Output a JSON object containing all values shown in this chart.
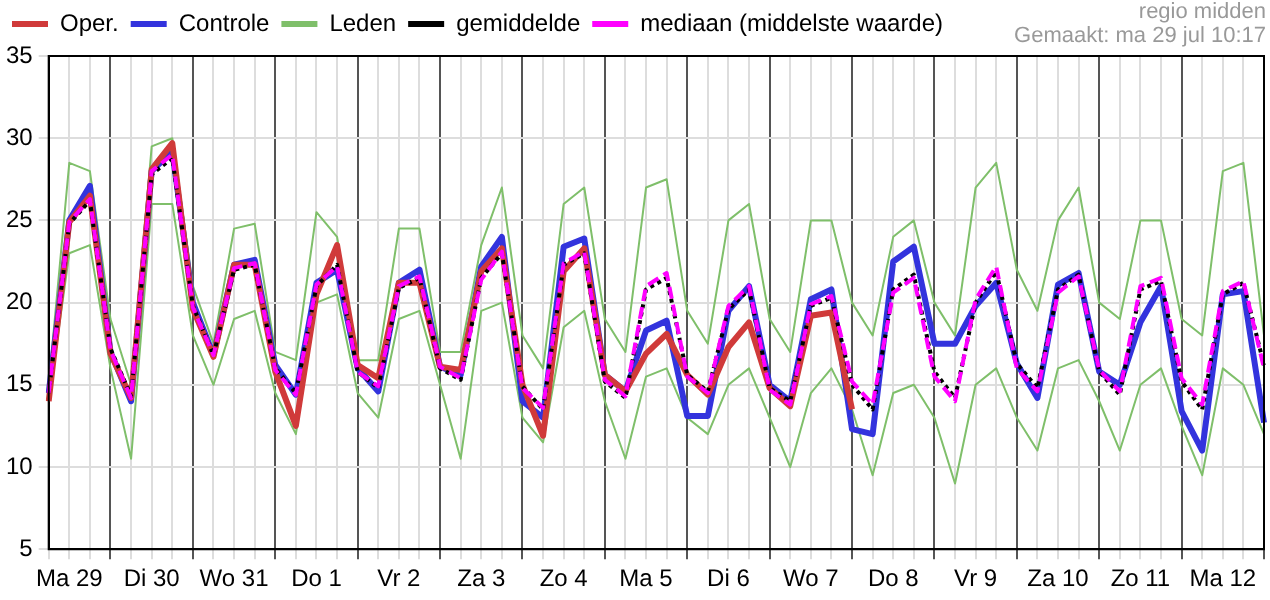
{
  "chart_data": {
    "type": "line",
    "categories": [
      null,
      "Ma 29",
      null,
      null,
      null,
      "Di 30",
      null,
      null,
      null,
      "Wo 31",
      null,
      null,
      null,
      "Do 1",
      null,
      null,
      null,
      "Vr 2",
      null,
      null,
      null,
      "Za 3",
      null,
      null,
      null,
      "Zo 4",
      null,
      null,
      null,
      "Ma 5",
      null,
      null,
      null,
      "Di 6",
      null,
      null,
      null,
      "Wo 7",
      null,
      null,
      null,
      "Do 8",
      null,
      null,
      null,
      "Vr 9",
      null,
      null,
      null,
      "Za 10",
      null,
      null,
      null,
      "Zo 11",
      null,
      null,
      null,
      "Ma 12",
      null,
      null
    ],
    "series": [
      {
        "name": "Oper.",
        "color": "#d03a3a",
        "line_style": "solid",
        "values": [
          14.0,
          24.9,
          26.5,
          16.9,
          14.2,
          28.1,
          29.7,
          19.6,
          16.7,
          22.3,
          22.3,
          15.8,
          12.5,
          20.5,
          23.5,
          16.2,
          15.4,
          21.2,
          21.2,
          16.1,
          15.9,
          21.9,
          23.3,
          15.0,
          11.9,
          21.9,
          23.3,
          15.6,
          14.6,
          16.9,
          18.1,
          15.6,
          14.4,
          17.3,
          18.8,
          14.8,
          13.7,
          19.2,
          19.4,
          13.5,
          null,
          null,
          null,
          null,
          null,
          null,
          null,
          null,
          null,
          null,
          null,
          null,
          null,
          null,
          null,
          null,
          null,
          null,
          null,
          null
        ]
      },
      {
        "name": "Controle",
        "color": "#3333dd",
        "line_style": "solid",
        "values": [
          14.5,
          25.0,
          27.1,
          17.0,
          14.0,
          28.0,
          29.2,
          20.0,
          16.8,
          22.3,
          22.6,
          16.2,
          14.4,
          21.2,
          22.0,
          16.0,
          14.6,
          21.2,
          22.0,
          16.1,
          15.6,
          22.2,
          24.0,
          14.0,
          13.0,
          23.4,
          23.9,
          15.6,
          14.6,
          18.3,
          18.9,
          13.1,
          13.1,
          19.5,
          21.0,
          15.0,
          14.0,
          20.2,
          20.8,
          12.3,
          12.0,
          22.5,
          23.4,
          17.5,
          17.5,
          19.8,
          21.2,
          16.3,
          14.2,
          21.1,
          21.8,
          15.8,
          15.0,
          18.8,
          21.0,
          13.4,
          11.0,
          20.5,
          20.7,
          12.7
        ]
      },
      {
        "name": "Leden",
        "color": "#7fbf6a",
        "line_style": "solid",
        "values": [
          15,
          28.5,
          28,
          19,
          15,
          29.5,
          30,
          21,
          17.5,
          24.5,
          24.8,
          17,
          16.5,
          25.5,
          24,
          16.5,
          16.5,
          24.5,
          24.5,
          17,
          17,
          23.5,
          27,
          18,
          16,
          26,
          27,
          19,
          17,
          27,
          27.5,
          19.5,
          17.5,
          25,
          26,
          19,
          17,
          25,
          25,
          20,
          18,
          24,
          25,
          20,
          18,
          27,
          28.5,
          22,
          19.5,
          25,
          27,
          20,
          19,
          25,
          25,
          19,
          18,
          28,
          28.5,
          18
        ]
      },
      {
        "color": "#7fbf6a",
        "line_style": "solid",
        "values": [
          14,
          23,
          23.5,
          16,
          10.5,
          26,
          26,
          18,
          15,
          19,
          19.5,
          14.5,
          12,
          20,
          20.5,
          14.5,
          13,
          19,
          19.5,
          15,
          10.5,
          19.5,
          20,
          13,
          11.5,
          18.5,
          19.5,
          14,
          10.5,
          15.5,
          16,
          13,
          12,
          15,
          16,
          13,
          10,
          14.5,
          16,
          13.5,
          9.5,
          14.5,
          15,
          13,
          9,
          15,
          16,
          13,
          11,
          16,
          16.5,
          14,
          11,
          15,
          16,
          12.5,
          9.5,
          16,
          15,
          12
        ]
      },
      {
        "name": "gemiddelde",
        "color": "#000000",
        "line_style": "dotted",
        "values": [
          14.5,
          24.8,
          26.2,
          17.2,
          14.3,
          27.8,
          28.8,
          19.8,
          16.8,
          22.0,
          22.3,
          16.0,
          14.5,
          21.0,
          22.3,
          15.8,
          14.8,
          20.9,
          21.5,
          16.0,
          15.3,
          21.5,
          23.0,
          14.9,
          13.5,
          22.3,
          23.0,
          15.2,
          14.2,
          20.8,
          21.5,
          15.6,
          14.6,
          19.6,
          20.8,
          14.8,
          14.0,
          19.8,
          20.3,
          15.0,
          13.5,
          20.8,
          21.7,
          15.8,
          14.2,
          20.0,
          21.9,
          16.3,
          14.8,
          20.8,
          21.7,
          15.8,
          14.4,
          20.8,
          21.3,
          15.2,
          13.5,
          20.5,
          21.2,
          16.2
        ]
      },
      {
        "name": "mediaan (middelste waarde)",
        "color": "#ff00ff",
        "line_style": "dashed",
        "values": [
          14.5,
          24.9,
          26.3,
          17.1,
          14.2,
          28.0,
          29.0,
          19.7,
          16.8,
          22.1,
          22.4,
          15.9,
          14.4,
          21.1,
          22.2,
          15.8,
          14.9,
          21.0,
          21.6,
          16.1,
          15.4,
          21.4,
          23.1,
          14.8,
          13.6,
          22.4,
          23.1,
          15.3,
          14.3,
          21.0,
          21.8,
          15.5,
          14.5,
          19.8,
          21.0,
          14.7,
          13.8,
          19.9,
          20.4,
          15.2,
          13.8,
          20.6,
          21.5,
          15.5,
          14.0,
          20.2,
          22.2,
          16.0,
          14.6,
          20.6,
          21.6,
          15.9,
          14.6,
          21.0,
          21.5,
          15.4,
          13.8,
          20.7,
          21.3,
          16.0
        ]
      }
    ],
    "ylim": [
      5,
      35
    ],
    "yticks": [
      5,
      10,
      15,
      20,
      25,
      30,
      35
    ],
    "grid": true,
    "legend": "top",
    "marker": "none",
    "annotations": [
      "regio midden",
      "Gemaakt: ma 29 jul 10:17"
    ]
  }
}
